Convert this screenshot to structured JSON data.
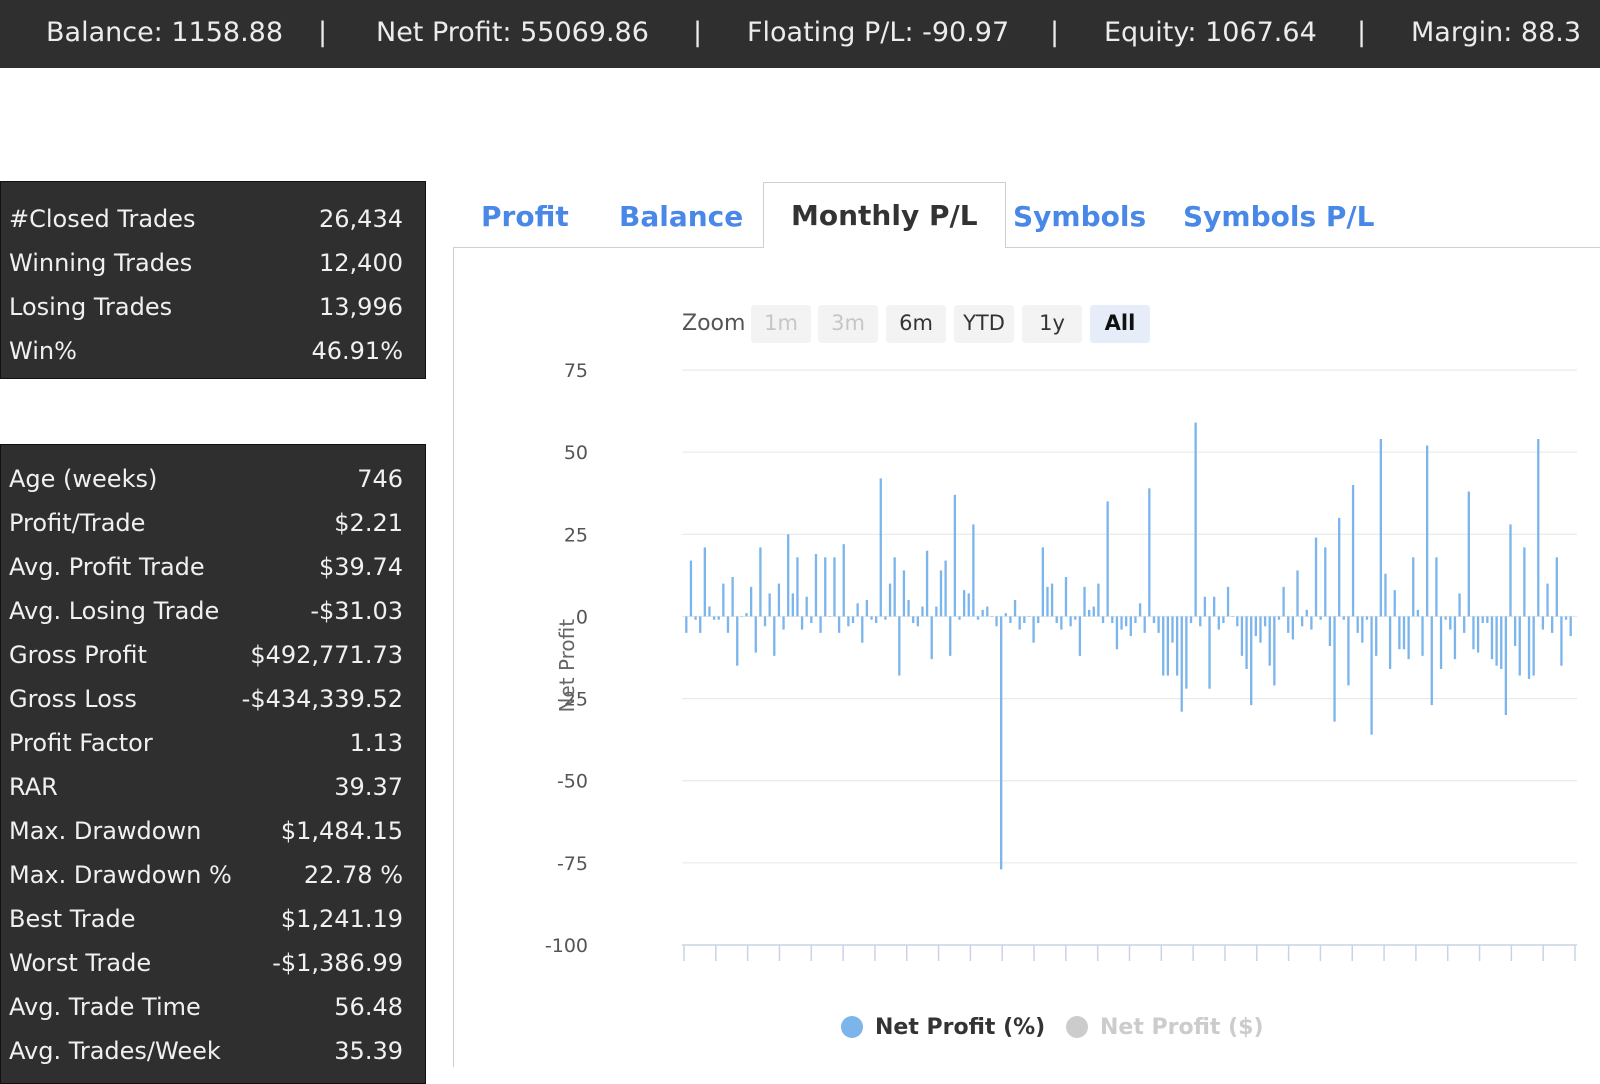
{
  "header": {
    "balance": "Balance: 1158.88",
    "net_profit": "Net Profit: 55069.86",
    "floating": "Floating P/L: -90.97",
    "equity": "Equity: 1067.64",
    "margin": "Margin: 88.3",
    "separator": "|"
  },
  "stats_primary": [
    {
      "label": "#Closed Trades",
      "value": "26,434"
    },
    {
      "label": "Winning Trades",
      "value": "12,400"
    },
    {
      "label": "Losing Trades",
      "value": "13,996"
    },
    {
      "label": "Win%",
      "value": "46.91%"
    }
  ],
  "stats_secondary": [
    {
      "label": "Age (weeks)",
      "value": "746"
    },
    {
      "label": "Profit/Trade",
      "value": "$2.21"
    },
    {
      "label": "Avg. Profit Trade",
      "value": "$39.74"
    },
    {
      "label": "Avg. Losing Trade",
      "value": "-$31.03"
    },
    {
      "label": "Gross Profit",
      "value": "$492,771.73"
    },
    {
      "label": "Gross Loss",
      "value": "-$434,339.52"
    },
    {
      "label": "Profit Factor",
      "value": "1.13"
    },
    {
      "label": "RAR",
      "value": "39.37"
    },
    {
      "label": "Max. Drawdown",
      "value": "$1,484.15"
    },
    {
      "label": "Max. Drawdown %",
      "value": "22.78 %"
    },
    {
      "label": "Best Trade",
      "value": "$1,241.19"
    },
    {
      "label": "Worst Trade",
      "value": "-$1,386.99"
    },
    {
      "label": "Avg. Trade Time",
      "value": "56.48"
    },
    {
      "label": "Avg. Trades/Week",
      "value": "35.39"
    }
  ],
  "tabs": {
    "profit": "Profit",
    "balance": "Balance",
    "monthly_pl": "Monthly P/L",
    "symbols": "Symbols",
    "symbols_pl": "Symbols P/L",
    "active": "monthly_pl"
  },
  "zoom": {
    "label": "Zoom",
    "buttons": [
      {
        "label": "1m",
        "state": "disabled"
      },
      {
        "label": "3m",
        "state": "disabled"
      },
      {
        "label": "6m",
        "state": "normal"
      },
      {
        "label": "YTD",
        "state": "normal"
      },
      {
        "label": "1y",
        "state": "normal"
      },
      {
        "label": "All",
        "state": "selected"
      }
    ]
  },
  "legend": {
    "net_profit_pct": "Net Profit (%)",
    "net_profit_usd": "Net Profit ($)"
  },
  "colors": {
    "bar": "#7cb5ec",
    "tab_link": "#4a88e8",
    "legend_inactive": "#cccccc",
    "panel_dark": "#2f2f2f"
  },
  "chart_data": {
    "type": "bar",
    "ylabel": "Net Profit",
    "ylim": [
      -100,
      75
    ],
    "yticks": [
      75,
      50,
      25,
      0,
      -25,
      -50,
      -75,
      -100
    ],
    "grid": true,
    "legend_position": "bottom-center",
    "series": [
      {
        "name": "Net Profit (%)",
        "active": true,
        "values": [
          -5,
          17,
          -1,
          -5,
          21,
          3,
          -1,
          -1,
          10,
          -5,
          12,
          -15,
          0,
          1,
          9,
          -11,
          21,
          -3,
          7,
          -12,
          10,
          -4,
          25,
          7,
          18,
          -4,
          6,
          -2,
          19,
          -5,
          18,
          0,
          18,
          -5,
          22,
          -3,
          -2,
          4,
          -8,
          5,
          -1,
          -2,
          42,
          -1,
          10,
          18,
          -18,
          14,
          5,
          -2,
          -3,
          3,
          20,
          -13,
          3,
          14,
          17,
          -12,
          37,
          -1,
          8,
          7,
          28,
          -1,
          2,
          3,
          0,
          -3,
          -77,
          1,
          -2,
          5,
          -4,
          -2,
          0,
          -8,
          -2,
          21,
          9,
          10,
          -2,
          -4,
          12,
          -3,
          -1,
          -12,
          9,
          2,
          3,
          10,
          -2,
          35,
          -2,
          -10,
          -4,
          -3,
          -6,
          -2,
          4,
          -5,
          39,
          -2,
          -5,
          -18,
          -18,
          -8,
          -18,
          -29,
          -22,
          -2,
          59,
          -3,
          6,
          -22,
          6,
          -4,
          -2,
          9,
          0,
          -3,
          -12,
          -16,
          -27,
          -6,
          -8,
          -3,
          -15,
          -21,
          -1,
          9,
          -5,
          -7,
          14,
          -3,
          2,
          -4,
          24,
          -1,
          21,
          -9,
          -32,
          30,
          -1,
          -21,
          40,
          -5,
          -8,
          -1,
          -36,
          -12,
          54,
          13,
          -16,
          8,
          -10,
          -10,
          -13,
          18,
          2,
          -12,
          52,
          -27,
          18,
          -16,
          -1,
          -4,
          -13,
          7,
          -5,
          38,
          -10,
          -11,
          -2,
          -2,
          -13,
          -15,
          -16,
          -30,
          28,
          -9,
          -18,
          21,
          -19,
          -18,
          54,
          -4,
          10,
          -5,
          18,
          -15,
          -1,
          -6
        ]
      },
      {
        "name": "Net Profit ($)",
        "active": false,
        "values": []
      }
    ]
  }
}
